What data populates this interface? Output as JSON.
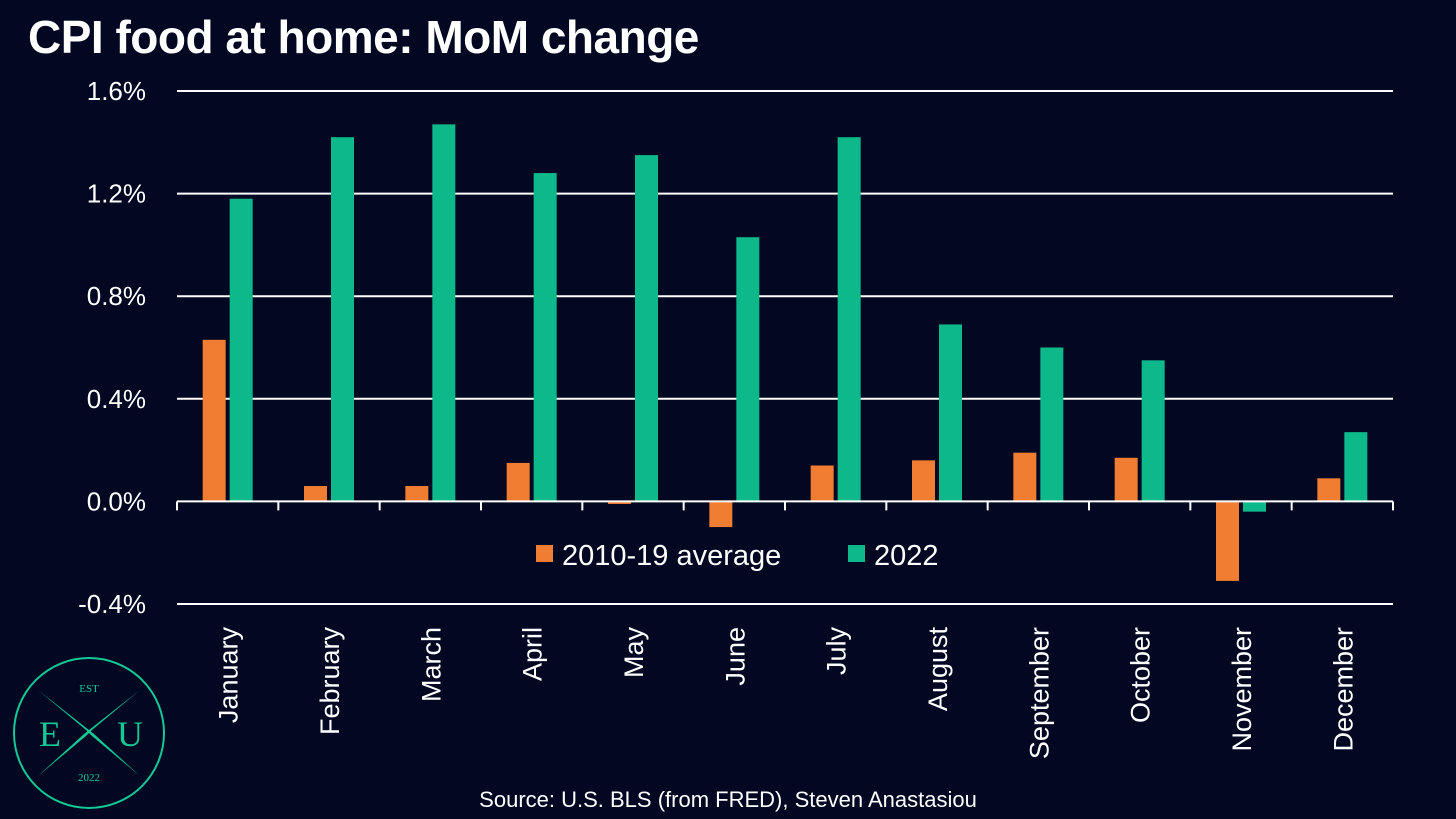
{
  "chart_data": {
    "type": "bar",
    "title": "CPI food at home: MoM change",
    "xlabel": "",
    "ylabel": "",
    "ylim": [
      -0.4,
      1.6
    ],
    "yticks": [
      -0.4,
      0.0,
      0.4,
      0.8,
      1.2,
      1.6
    ],
    "ytick_labels": [
      "-0.4%",
      "0.0%",
      "0.4%",
      "0.8%",
      "1.2%",
      "1.6%"
    ],
    "grid": true,
    "legend_position": "lower-center",
    "categories": [
      "January",
      "February",
      "March",
      "April",
      "May",
      "June",
      "July",
      "August",
      "September",
      "October",
      "November",
      "December"
    ],
    "series": [
      {
        "name": "2010-19 average",
        "color": "#F07D31",
        "values": [
          0.63,
          0.06,
          0.06,
          0.15,
          -0.01,
          -0.1,
          0.14,
          0.16,
          0.19,
          0.17,
          -0.31,
          0.09
        ]
      },
      {
        "name": "2022",
        "color": "#0DB98A",
        "values": [
          1.18,
          1.42,
          1.47,
          1.28,
          1.35,
          1.03,
          1.42,
          0.69,
          0.6,
          0.55,
          -0.04,
          0.27
        ]
      }
    ],
    "source": "Source: U.S. BLS (from FRED), Steven Anastasiou"
  },
  "logo": {
    "top_text": "EST",
    "left_letter": "E",
    "right_letter": "U",
    "bottom_text": "2022",
    "color": "#14C995"
  }
}
